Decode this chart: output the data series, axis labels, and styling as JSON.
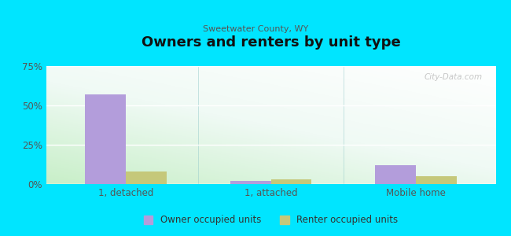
{
  "title": "Owners and renters by unit type",
  "subtitle": "Sweetwater County, WY",
  "categories": [
    "1, detached",
    "1, attached",
    "Mobile home"
  ],
  "owner_values": [
    57,
    2,
    12
  ],
  "renter_values": [
    8,
    3,
    5
  ],
  "owner_color": "#b39ddb",
  "renter_color": "#c5c87a",
  "ylim": [
    0,
    75
  ],
  "yticks": [
    0,
    25,
    50,
    75
  ],
  "ytick_labels": [
    "0%",
    "25%",
    "50%",
    "75%"
  ],
  "background_color": "#00e5ff",
  "bar_width": 0.28,
  "legend_owner": "Owner occupied units",
  "legend_renter": "Renter occupied units",
  "watermark": "City-Data.com"
}
